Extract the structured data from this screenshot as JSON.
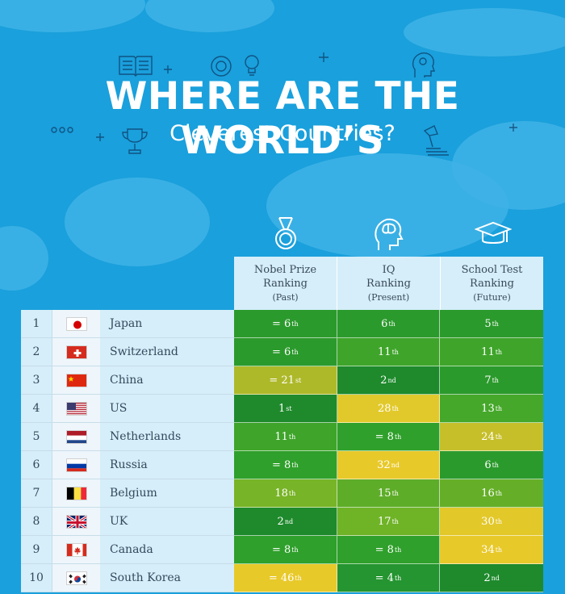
{
  "header": {
    "title": "WHERE ARE THE WORLD’S",
    "subtitle": "Cleverest Countries?"
  },
  "columns": [
    {
      "title": "Nobel Prize",
      "title2": "Ranking",
      "sub": "(Past)",
      "icon": "medal-icon"
    },
    {
      "title": "IQ",
      "title2": "Ranking",
      "sub": "(Present)",
      "icon": "brain-head-icon"
    },
    {
      "title": "School Test",
      "title2": "Ranking",
      "sub": "(Future)",
      "icon": "graduation-cap-icon"
    }
  ],
  "colors": {
    "dark_green": "#1e8a2c",
    "green": "#2fa02b",
    "light_green": "#6fb327",
    "olive": "#b3bb2a",
    "yellow": "#e6c72a"
  },
  "rows": [
    {
      "rank": "1",
      "flag": "japan-flag",
      "country": "Japan",
      "values": [
        {
          "n": "= 6",
          "s": "th",
          "c": "#2b9a2c"
        },
        {
          "n": "6",
          "s": "th",
          "c": "#2b9a2c"
        },
        {
          "n": "5",
          "s": "th",
          "c": "#2b9a2c"
        }
      ]
    },
    {
      "rank": "2",
      "flag": "switzerland-flag",
      "country": "Switzerland",
      "values": [
        {
          "n": "= 6",
          "s": "th",
          "c": "#2b9a2c"
        },
        {
          "n": "11",
          "s": "th",
          "c": "#3ea52a"
        },
        {
          "n": "11",
          "s": "th",
          "c": "#3ea52a"
        }
      ]
    },
    {
      "rank": "3",
      "flag": "china-flag",
      "country": "China",
      "values": [
        {
          "n": "= 21",
          "s": "st",
          "c": "#aeb92a"
        },
        {
          "n": "2",
          "s": "nd",
          "c": "#1e8a2c"
        },
        {
          "n": "7",
          "s": "th",
          "c": "#2b9a2c"
        }
      ]
    },
    {
      "rank": "4",
      "flag": "us-flag",
      "country": "US",
      "values": [
        {
          "n": "1",
          "s": "st",
          "c": "#1e8a2c"
        },
        {
          "n": "28",
          "s": "th",
          "c": "#e2c92b"
        },
        {
          "n": "13",
          "s": "th",
          "c": "#45a82a"
        }
      ]
    },
    {
      "rank": "5",
      "flag": "netherlands-flag",
      "country": "Netherlands",
      "values": [
        {
          "n": "11",
          "s": "th",
          "c": "#3ea52a"
        },
        {
          "n": "= 8",
          "s": "th",
          "c": "#2fa02b"
        },
        {
          "n": "24",
          "s": "th",
          "c": "#c6bf2a"
        }
      ]
    },
    {
      "rank": "6",
      "flag": "russia-flag",
      "country": "Russia",
      "values": [
        {
          "n": "= 8",
          "s": "th",
          "c": "#2fa02b"
        },
        {
          "n": "32",
          "s": "nd",
          "c": "#e8c92a"
        },
        {
          "n": "6",
          "s": "th",
          "c": "#2b9a2c"
        }
      ]
    },
    {
      "rank": "7",
      "flag": "belgium-flag",
      "country": "Belgium",
      "values": [
        {
          "n": "18",
          "s": "th",
          "c": "#78b427"
        },
        {
          "n": "15",
          "s": "th",
          "c": "#5ead29"
        },
        {
          "n": "16",
          "s": "th",
          "c": "#65af28"
        }
      ]
    },
    {
      "rank": "8",
      "flag": "uk-flag",
      "country": "UK",
      "values": [
        {
          "n": "2",
          "s": "nd",
          "c": "#1e8a2c"
        },
        {
          "n": "17",
          "s": "th",
          "c": "#6fb327"
        },
        {
          "n": "30",
          "s": "th",
          "c": "#e3c82a"
        }
      ]
    },
    {
      "rank": "9",
      "flag": "canada-flag",
      "country": "Canada",
      "values": [
        {
          "n": "= 8",
          "s": "th",
          "c": "#2fa02b"
        },
        {
          "n": "= 8",
          "s": "th",
          "c": "#2fa02b"
        },
        {
          "n": "34",
          "s": "th",
          "c": "#e8c92a"
        }
      ]
    },
    {
      "rank": "10",
      "flag": "south-korea-flag",
      "country": "South Korea",
      "values": [
        {
          "n": "= 46",
          "s": "th",
          "c": "#e8c92a"
        },
        {
          "n": "= 4",
          "s": "th",
          "c": "#249530"
        },
        {
          "n": "2",
          "s": "nd",
          "c": "#1e8a2c"
        }
      ]
    }
  ]
}
